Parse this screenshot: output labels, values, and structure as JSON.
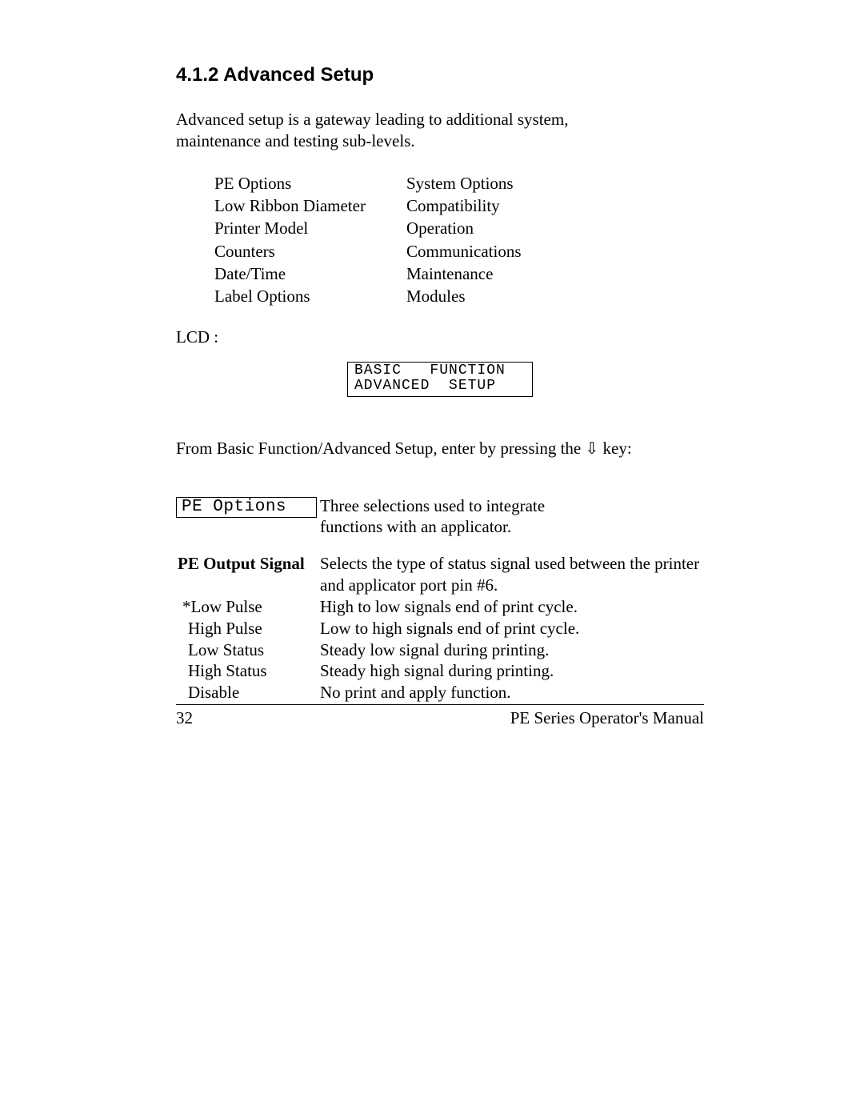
{
  "heading": "4.1.2  Advanced Setup",
  "intro": "Advanced setup is a gateway leading to additional system, maintenance and testing sub-levels.",
  "options_left": [
    "PE Options",
    "Low Ribbon Diameter",
    "Printer Model",
    "Counters",
    "Date/Time",
    "Label Options"
  ],
  "options_right": [
    "System Options",
    "Compatibility",
    "Operation",
    "Communications",
    "Maintenance",
    "Modules"
  ],
  "lcd_label": "LCD :",
  "lcd_line1": "BASIC   FUNCTION",
  "lcd_line2": "ADVANCED  SETUP",
  "from_line_pre": "From Basic Function/Advanced Setup, enter by pressing the ",
  "from_line_arrow": "⇩",
  "from_line_post": " key:",
  "pe_options_box": "PE Options",
  "pe_options_desc": "Three selections used to integrate functions with an applicator.",
  "pe_output_signal_label": "PE Output Signal",
  "pe_output_signal_desc": "Selects the type of status signal used between the printer and applicator port pin #6.",
  "signal_rows": [
    {
      "label": "*Low Pulse",
      "desc": "High to low signals end of print cycle.",
      "indent": "indent1"
    },
    {
      "label": "High Pulse",
      "desc": "Low to high signals end of print cycle.",
      "indent": "indent2"
    },
    {
      "label": "Low Status",
      "desc": "Steady low signal during printing.",
      "indent": "indent2"
    },
    {
      "label": "High Status",
      "desc": "Steady high signal during printing.",
      "indent": "indent2"
    },
    {
      "label": "Disable",
      "desc": "No print and apply function.",
      "indent": "indent2"
    }
  ],
  "footer_page": "32",
  "footer_manual": "PE Series Operator's Manual"
}
